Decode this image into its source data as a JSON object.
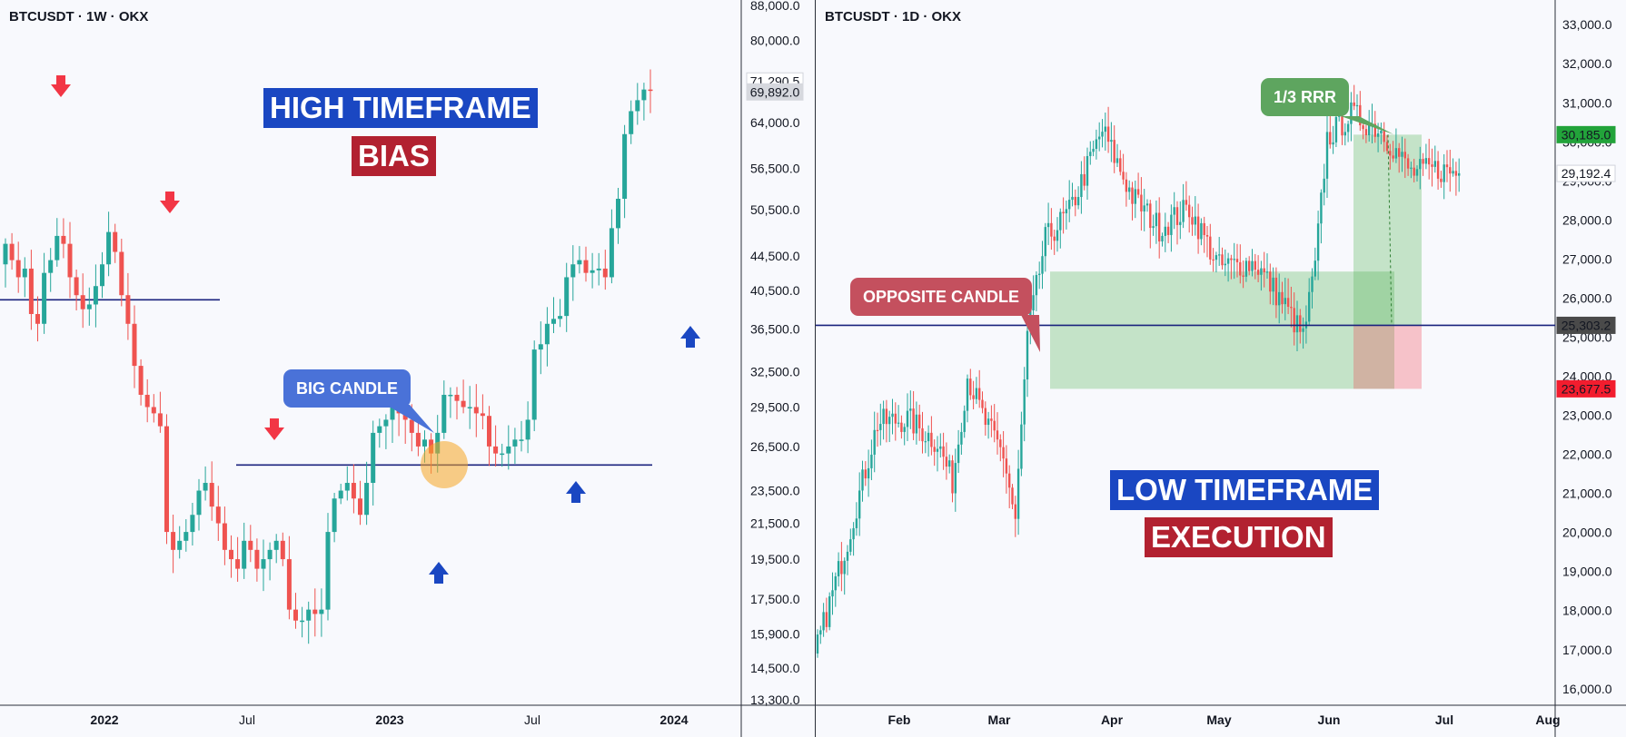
{
  "left": {
    "symbol": "BTCUSDT · 1W · OKX",
    "title_line1": "HIGH TIMEFRAME",
    "title_line2": "BIAS",
    "callout": "BIG CANDLE",
    "price_ticks": [
      "88,000.0",
      "80,000.0",
      "64,000.0",
      "56,500.0",
      "50,500.0",
      "44,500.0",
      "40,500.0",
      "36,500.0",
      "32,500.0",
      "29,500.0",
      "26,500.0",
      "23,500.0",
      "21,500.0",
      "19,500.0",
      "17,500.0",
      "15,900.0",
      "14,500.0",
      "13,300.0"
    ],
    "price_badges": [
      {
        "text": "71,290.5",
        "bg": "#ffffff",
        "fg": "#c0c3cc",
        "border": "#d1d4dc"
      },
      {
        "text": "69,892.0",
        "bg": "#d6d8de",
        "fg": "#131722",
        "border": "#d6d8de"
      }
    ],
    "time_ticks": [
      {
        "text": "2022",
        "bold": true
      },
      {
        "text": "Jul",
        "bold": false
      },
      {
        "text": "2023",
        "bold": true
      },
      {
        "text": "Jul",
        "bold": false
      },
      {
        "text": "2024",
        "bold": true
      }
    ]
  },
  "right": {
    "symbol": "BTCUSDT · 1D · OKX",
    "title_line1": "LOW TIMEFRAME",
    "title_line2": "EXECUTION",
    "callout_top": "1/3 RRR",
    "callout_mid": "OPPOSITE CANDLE",
    "price_ticks": [
      "33,000.0",
      "32,000.0",
      "31,000.0",
      "30,000.0",
      "29,000.0",
      "28,000.0",
      "27,000.0",
      "26,000.0",
      "25,000.0",
      "24,000.0",
      "23,000.0",
      "22,000.0",
      "21,000.0",
      "20,000.0",
      "19,000.0",
      "18,000.0",
      "17,000.0",
      "16,000.0"
    ],
    "price_badges": [
      {
        "text": "30,185.0",
        "bg": "#22a33a",
        "fg": "#ffffff",
        "border": "#22a33a"
      },
      {
        "text": "29,192.4",
        "bg": "#ffffff",
        "fg": "#c0c3cc",
        "border": "#d1d4dc"
      },
      {
        "text": "25,303.2",
        "bg": "#4a4a4a",
        "fg": "#ffffff",
        "border": "#4a4a4a"
      },
      {
        "text": "23,677.5",
        "bg": "#f21d2e",
        "fg": "#ffffff",
        "border": "#f21d2e"
      }
    ],
    "time_ticks": [
      {
        "text": "Feb",
        "bold": true
      },
      {
        "text": "Mar",
        "bold": true
      },
      {
        "text": "Apr",
        "bold": true
      },
      {
        "text": "May",
        "bold": true
      },
      {
        "text": "Jun",
        "bold": true
      },
      {
        "text": "Jul",
        "bold": true
      },
      {
        "text": "Aug",
        "bold": true
      }
    ]
  },
  "colors": {
    "up": "#26a69a",
    "down": "#ef5350",
    "level_line": "#1a237e",
    "arrow_down": "#f23645",
    "arrow_up": "#1a47c2",
    "callout_blue": "#4a72d8",
    "callout_red": "#c4505e",
    "callout_green": "#5ea55f"
  },
  "chart_data": [
    {
      "type": "candlestick",
      "title": "BTCUSDT · 1W · OKX",
      "x_labels": [
        "2022",
        "Jul",
        "2023",
        "Jul",
        "2024"
      ],
      "ylim": [
        13300,
        88000
      ],
      "y_scale": "log",
      "key_levels": [
        39500,
        25200
      ],
      "approx_closes": [
        46000,
        44000,
        42000,
        43000,
        38000,
        37000,
        42500,
        44000,
        47000,
        46000,
        42000,
        40000,
        38500,
        39000,
        41000,
        43500,
        47500,
        45000,
        40000,
        37000,
        33000,
        30500,
        29500,
        29000,
        28000,
        21000,
        20000,
        20500,
        21000,
        22000,
        23500,
        24000,
        22500,
        21500,
        20000,
        19500,
        19000,
        20500,
        20000,
        19000,
        19500,
        20000,
        20500,
        19500,
        17000,
        16500,
        16500,
        17000,
        16800,
        17000,
        21000,
        23000,
        23500,
        24000,
        23000,
        22000,
        24000,
        27500,
        28000,
        28500,
        29500,
        29000,
        28500,
        27500,
        26500,
        27000,
        26000,
        27500,
        30500,
        30500,
        30000,
        29500,
        29500,
        29000,
        28800,
        26500,
        26000,
        26000,
        26500,
        27000,
        27000,
        28500,
        34500,
        35000,
        37000,
        37500,
        37800,
        42000,
        43500,
        44000,
        42500,
        42800,
        43000,
        42000,
        48000,
        52000,
        62000,
        66000,
        68000,
        70000,
        69892
      ]
    },
    {
      "type": "candlestick",
      "title": "BTCUSDT · 1D · OKX",
      "x_labels": [
        "Feb",
        "Mar",
        "Apr",
        "May",
        "Jun",
        "Jul",
        "Aug"
      ],
      "ylim": [
        15600,
        33400
      ],
      "key_levels": [
        25303.2
      ],
      "trade": {
        "entry": 25303.2,
        "stop": 23677.5,
        "target": 30185.0,
        "rrr_label": "1/3 RRR"
      }
    }
  ]
}
